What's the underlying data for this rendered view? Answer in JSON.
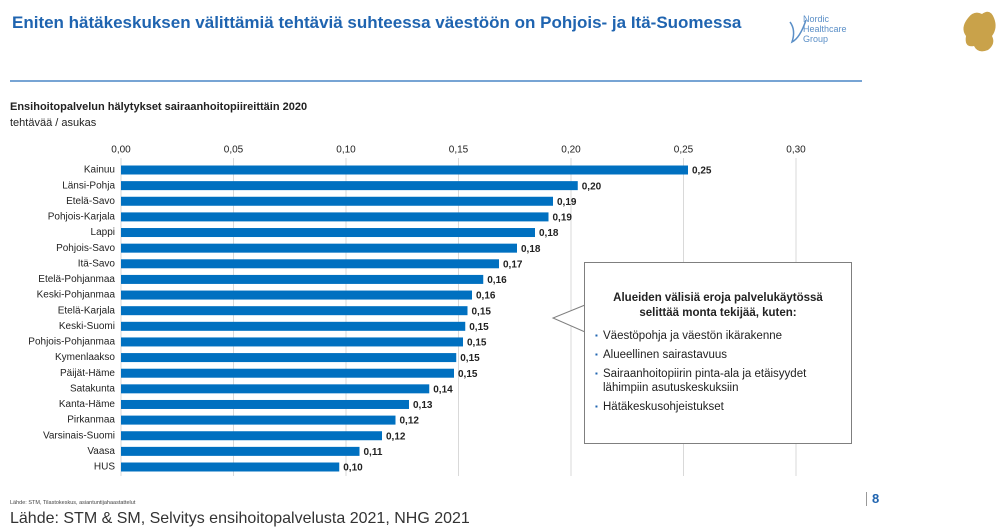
{
  "header": {
    "title": "Eniten hätäkeskuksen välittämiä tehtäviä suhteessa väestöön on Pohjois- ja Itä-Suomessa",
    "logo_lines": [
      "Nordic",
      "Healthcare",
      "Group"
    ]
  },
  "chart_data": {
    "type": "bar",
    "horizontal": true,
    "title": "Ensihoitopalvelun hälytykset sairaanhoitopiireittäin 2020",
    "subtitle": "tehtävää / asukas",
    "color": "#0070c0",
    "grid": true,
    "categories": [
      "Kainuu",
      "Länsi-Pohja",
      "Etelä-Savo",
      "Pohjois-Karjala",
      "Lappi",
      "Pohjois-Savo",
      "Itä-Savo",
      "Etelä-Pohjanmaa",
      "Keski-Pohjanmaa",
      "Etelä-Karjala",
      "Keski-Suomi",
      "Pohjois-Pohjanmaa",
      "Kymenlaakso",
      "Päijät-Häme",
      "Satakunta",
      "Kanta-Häme",
      "Pirkanmaa",
      "Varsinais-Suomi",
      "Vaasa",
      "HUS"
    ],
    "values": [
      0.252,
      0.203,
      0.192,
      0.19,
      0.184,
      0.176,
      0.168,
      0.161,
      0.156,
      0.154,
      0.153,
      0.152,
      0.149,
      0.148,
      0.137,
      0.128,
      0.122,
      0.116,
      0.106,
      0.097
    ],
    "value_labels": [
      "0,25",
      "0,20",
      "0,19",
      "0,19",
      "0,18",
      "0,18",
      "0,17",
      "0,16",
      "0,16",
      "0,15",
      "0,15",
      "0,15",
      "0,15",
      "0,15",
      "0,14",
      "0,13",
      "0,12",
      "0,12",
      "0,11",
      "0,10"
    ],
    "xlim": [
      0,
      0.3
    ],
    "xticks": [
      {
        "value": 0,
        "label": "0,00"
      },
      {
        "value": 0.05,
        "label": "0,05"
      },
      {
        "value": 0.1,
        "label": "0,10"
      },
      {
        "value": 0.15,
        "label": "0,15"
      },
      {
        "value": 0.2,
        "label": "0,20"
      },
      {
        "value": 0.25,
        "label": "0,25"
      },
      {
        "value": 0.3,
        "label": "0,30"
      }
    ]
  },
  "callout": {
    "title": "Alueiden välisiä eroja palvelukäytössä selittää monta tekijää, kuten:",
    "items": [
      "Väestöpohja ja väestön ikärakenne",
      "Alueellinen sairastavuus",
      "Sairaanhoitopiirin pinta-ala ja etäisyydet lähimpiin asutuskeskuksiin",
      "Hätäkeskusohjeistukset"
    ]
  },
  "footer": {
    "note": "Lähde: STM, Tilastokeskus, asiantuntijahaastattelut",
    "source": "Lähde: STM & SM, Selvitys ensihoitopalvelusta 2021, NHG 2021",
    "page": "8"
  }
}
